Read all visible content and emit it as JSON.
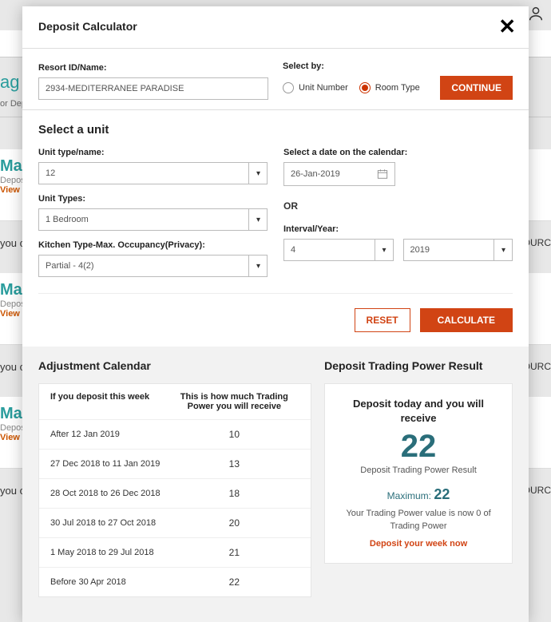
{
  "modal": {
    "title": "Deposit Calculator"
  },
  "form": {
    "resort_label": "Resort ID/Name:",
    "resort_value": "2934-MEDITERRANEE PARADISE",
    "selectby_label": "Select by:",
    "radio_unit": "Unit Number",
    "radio_room": "Room Type",
    "continue": "CONTINUE"
  },
  "unit": {
    "heading": "Select a unit",
    "type_label": "Unit type/name:",
    "type_value": "12",
    "types_label": "Unit Types:",
    "types_value": "1 Bedroom",
    "kitchen_label": "Kitchen Type-Max. Occupancy(Privacy):",
    "kitchen_value": "Partial - 4(2)",
    "date_label": "Select a date on the calendar:",
    "date_value": "26-Jan-2019",
    "or": "OR",
    "interval_label": "Interval/Year:",
    "interval_value": "4",
    "year_value": "2019",
    "reset": "RESET",
    "calculate": "CALCULATE"
  },
  "adjustment": {
    "title": "Adjustment Calendar",
    "col1": "If you deposit this week",
    "col2": "This is how much Trading Power you will receive",
    "rows": [
      {
        "period": "After 12 Jan 2019",
        "val": "10"
      },
      {
        "period": "27 Dec 2018 to 11 Jan 2019",
        "val": "13"
      },
      {
        "period": "28 Oct 2018 to 26 Dec 2018",
        "val": "18"
      },
      {
        "period": "30 Jul 2018 to 27 Oct 2018",
        "val": "20"
      },
      {
        "period": "1 May 2018 to 29 Jul 2018",
        "val": "21"
      },
      {
        "period": "Before 30 Apr 2018",
        "val": "22"
      }
    ]
  },
  "result": {
    "title": "Deposit Trading Power Result",
    "lead": "Deposit today and you will receive",
    "value": "22",
    "sub": "Deposit Trading Power Result",
    "max_label": "Maximum:",
    "max_value": "22",
    "desc": "Your Trading Power value is now 0 of Trading Power",
    "link": "Deposit your week now"
  },
  "bg": {
    "nag": "ag",
    "ordep": "or Dep",
    "max": "Max",
    "deposit": "Deposit",
    "viewpr": "View Pr",
    "youc": "you c",
    "ourc": "OURC"
  }
}
